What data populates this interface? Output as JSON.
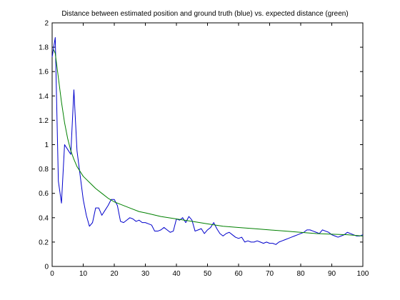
{
  "chart_data": {
    "type": "line",
    "title": "Distance between estimated position and ground truth (blue) vs. expected distance (green)",
    "xlabel": "",
    "ylabel": "",
    "xlim": [
      0,
      100
    ],
    "ylim": [
      0,
      2
    ],
    "xticks": [
      0,
      10,
      20,
      30,
      40,
      50,
      60,
      70,
      80,
      90,
      100
    ],
    "yticks": [
      0,
      0.2,
      0.4,
      0.6,
      0.8,
      1,
      1.2,
      1.4,
      1.6,
      1.8,
      2
    ],
    "grid": false,
    "series": [
      {
        "color": "#0000cc",
        "x": [
          0,
          1,
          2,
          3,
          4,
          5,
          6,
          7,
          8,
          9,
          10,
          11,
          12,
          13,
          14,
          15,
          16,
          17,
          18,
          19,
          20,
          21,
          22,
          23,
          24,
          25,
          26,
          27,
          28,
          29,
          30,
          31,
          32,
          33,
          34,
          35,
          36,
          37,
          38,
          39,
          40,
          41,
          42,
          43,
          44,
          45,
          46,
          47,
          48,
          49,
          50,
          51,
          52,
          53,
          54,
          55,
          56,
          57,
          58,
          59,
          60,
          61,
          62,
          63,
          64,
          65,
          66,
          67,
          68,
          69,
          70,
          71,
          72,
          73,
          74,
          75,
          76,
          77,
          78,
          79,
          80,
          81,
          82,
          83,
          84,
          85,
          86,
          87,
          88,
          89,
          90,
          91,
          92,
          93,
          94,
          95,
          96,
          97,
          98,
          99,
          100
        ],
        "values": [
          1.72,
          1.88,
          0.7,
          0.52,
          1.0,
          0.96,
          0.92,
          1.45,
          0.95,
          0.75,
          0.55,
          0.42,
          0.33,
          0.36,
          0.48,
          0.48,
          0.42,
          0.46,
          0.5,
          0.55,
          0.55,
          0.5,
          0.37,
          0.36,
          0.38,
          0.4,
          0.39,
          0.37,
          0.38,
          0.36,
          0.36,
          0.35,
          0.34,
          0.29,
          0.29,
          0.3,
          0.32,
          0.3,
          0.28,
          0.29,
          0.39,
          0.38,
          0.4,
          0.36,
          0.41,
          0.38,
          0.29,
          0.3,
          0.31,
          0.27,
          0.3,
          0.32,
          0.36,
          0.31,
          0.27,
          0.25,
          0.27,
          0.28,
          0.26,
          0.24,
          0.23,
          0.24,
          0.2,
          0.21,
          0.2,
          0.2,
          0.21,
          0.2,
          0.19,
          0.2,
          0.19,
          0.19,
          0.18,
          0.2,
          0.21,
          0.22,
          0.23,
          0.24,
          0.25,
          0.26,
          0.27,
          0.28,
          0.3,
          0.3,
          0.29,
          0.28,
          0.27,
          0.3,
          0.29,
          0.28,
          0.26,
          0.25,
          0.24,
          0.25,
          0.26,
          0.28,
          0.27,
          0.26,
          0.25,
          0.25,
          0.26
        ]
      },
      {
        "color": "#008000",
        "x": [
          0.5,
          1,
          2,
          3,
          4,
          5,
          6,
          7,
          8,
          9,
          10,
          12,
          14,
          16,
          18,
          20,
          22,
          25,
          28,
          30,
          35,
          40,
          45,
          50,
          55,
          60,
          65,
          70,
          75,
          80,
          85,
          90,
          95,
          100
        ],
        "values": [
          1.78,
          1.75,
          1.55,
          1.35,
          1.18,
          1.05,
          0.95,
          0.88,
          0.82,
          0.78,
          0.74,
          0.69,
          0.64,
          0.6,
          0.56,
          0.53,
          0.51,
          0.48,
          0.45,
          0.44,
          0.41,
          0.39,
          0.37,
          0.35,
          0.33,
          0.32,
          0.31,
          0.3,
          0.29,
          0.28,
          0.27,
          0.265,
          0.26,
          0.25
        ]
      }
    ]
  }
}
